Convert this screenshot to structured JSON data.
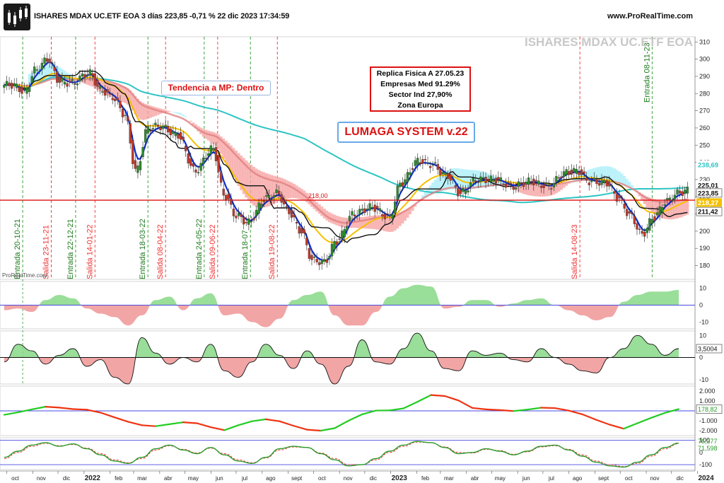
{
  "header": {
    "title": "ISHARES MDAX UC.ETF EOA 3 días 223,85 -0,71 % 22 dic 2023 17:34:59",
    "url": "www.ProRealTime.com",
    "watermark": "ISHARES MDAX UC.ETF EOA",
    "source": "ProRealTime.com"
  },
  "annotations": {
    "replica": [
      "Replica Fisica A 27.05.23",
      "Empresas Med 91.29%",
      "Sector Ind 27,90%",
      "Zona Europa"
    ],
    "system": "LUMAGA SYSTEM v.22",
    "trend": "Tendencia a MP: Dentro",
    "level_label": "218,00"
  },
  "colors": {
    "up": "#2e8b2e",
    "down": "#c0392b",
    "signal_green": "#2a9a2a",
    "signal_red": "#e33",
    "blue_line": "#1030d0",
    "yellow_ma": "#f5c000",
    "pink_ma": "#e08080",
    "cyan_ma": "#2ec4c4",
    "black_line": "#111111",
    "cloud_red": "#f7a0a0",
    "cloud_cyan": "#a8eef8",
    "hline_red": "#d11"
  },
  "chart_data": [
    {
      "type": "candlestick",
      "title": "ISHARES MDAX UC.ETF EOA 3 días",
      "x": [
        "oct",
        "nov",
        "dic",
        "2022",
        "feb",
        "mar",
        "abr",
        "may",
        "jun",
        "jul",
        "ago",
        "sept",
        "oct",
        "nov",
        "dic",
        "2023",
        "feb",
        "mar",
        "abr",
        "may",
        "jun",
        "jul",
        "ago",
        "sept",
        "oct",
        "nov",
        "dic",
        "2024"
      ],
      "ylim": [
        172,
        313
      ],
      "yticks": [
        180,
        190,
        200,
        210,
        220,
        230,
        240,
        250,
        260,
        270,
        280,
        290,
        300,
        310
      ],
      "price_series": [
        [
          "2021-10-08",
          285
        ],
        [
          "2021-10-22",
          281
        ],
        [
          "2021-11-05",
          294
        ],
        [
          "2021-11-19",
          300
        ],
        [
          "2021-12-03",
          287
        ],
        [
          "2021-12-17",
          286
        ],
        [
          "2022-01-07",
          292
        ],
        [
          "2022-01-21",
          282
        ],
        [
          "2022-02-04",
          278
        ],
        [
          "2022-02-18",
          268
        ],
        [
          "2022-03-04",
          235
        ],
        [
          "2022-03-18",
          260
        ],
        [
          "2022-04-01",
          261
        ],
        [
          "2022-04-22",
          256
        ],
        [
          "2022-05-13",
          235
        ],
        [
          "2022-06-03",
          248
        ],
        [
          "2022-06-17",
          221
        ],
        [
          "2022-07-01",
          209
        ],
        [
          "2022-07-15",
          205
        ],
        [
          "2022-08-05",
          219
        ],
        [
          "2022-08-19",
          222
        ],
        [
          "2022-09-02",
          211
        ],
        [
          "2022-09-16",
          200
        ],
        [
          "2022-09-30",
          183
        ],
        [
          "2022-10-14",
          182
        ],
        [
          "2022-10-28",
          194
        ],
        [
          "2022-11-18",
          210
        ],
        [
          "2022-12-09",
          214
        ],
        [
          "2022-12-30",
          208
        ],
        [
          "2023-01-13",
          228
        ],
        [
          "2023-02-03",
          241
        ],
        [
          "2023-02-17",
          239
        ],
        [
          "2023-03-10",
          232
        ],
        [
          "2023-03-24",
          222
        ],
        [
          "2023-04-14",
          230
        ],
        [
          "2023-05-05",
          230
        ],
        [
          "2023-05-26",
          226
        ],
        [
          "2023-06-16",
          229
        ],
        [
          "2023-07-07",
          226
        ],
        [
          "2023-07-28",
          234
        ],
        [
          "2023-08-11",
          235
        ],
        [
          "2023-08-25",
          229
        ],
        [
          "2023-09-15",
          228
        ],
        [
          "2023-09-29",
          219
        ],
        [
          "2023-10-13",
          209
        ],
        [
          "2023-10-27",
          198
        ],
        [
          "2023-11-10",
          208
        ],
        [
          "2023-11-24",
          217
        ],
        [
          "2023-12-08",
          222
        ],
        [
          "2023-12-22",
          223.85
        ]
      ],
      "price_labels": {
        "last": "223,85",
        "blue": "225,01",
        "black": "211,42",
        "yellow": "218,27",
        "cyan": "238,69"
      },
      "horizontal_line": 218,
      "signals": [
        {
          "label": "Entrada 20-10-21",
          "type": "entrada",
          "date": "2021-10-20"
        },
        {
          "label": "Salida 23-11-21",
          "type": "salida",
          "date": "2021-11-23"
        },
        {
          "label": "Entrada 22-12-21",
          "type": "entrada",
          "date": "2021-12-22"
        },
        {
          "label": "Salida 14-01-22",
          "type": "salida",
          "date": "2022-01-14"
        },
        {
          "label": "Entrada 18-03-22",
          "type": "entrada",
          "date": "2022-03-18"
        },
        {
          "label": "Salida 08-04-22",
          "type": "salida",
          "date": "2022-04-08"
        },
        {
          "label": "Entrada 24-05-22",
          "type": "entrada",
          "date": "2022-05-24"
        },
        {
          "label": "Salida 09-06-22",
          "type": "salida",
          "date": "2022-06-09"
        },
        {
          "label": "Entrada 18-07",
          "type": "entrada",
          "date": "2022-07-18"
        },
        {
          "label": "Salida 19-08-22",
          "type": "salida",
          "date": "2022-08-19"
        },
        {
          "label": "Salida 14-08-23",
          "type": "salida",
          "date": "2023-08-14"
        },
        {
          "label": "Entrada 08-11-23",
          "type": "entrada",
          "date": "2023-11-08"
        }
      ]
    },
    {
      "type": "area",
      "panel": "oscillator 1",
      "yticks": [
        10,
        0,
        -10
      ],
      "ylim": [
        -14,
        14
      ],
      "series": [
        {
          "values": [
            -3,
            -2,
            -4,
            3,
            6,
            4,
            -2,
            -5,
            -7,
            -12,
            -6,
            3,
            5,
            -3,
            4,
            7,
            -6,
            -5,
            -10,
            -13,
            -8,
            3,
            6,
            8,
            -6,
            -12,
            -12,
            -4,
            5,
            10,
            12,
            11,
            -2,
            -1,
            3,
            3,
            -1,
            1,
            3,
            4,
            0,
            -3,
            -6,
            -9,
            -7,
            2,
            6,
            8,
            8,
            9
          ]
        }
      ]
    },
    {
      "type": "area",
      "panel": "oscillator 2",
      "yticks": [
        10,
        0,
        -10
      ],
      "ylim": [
        -12,
        12
      ],
      "last_label": "3,5004",
      "series": [
        {
          "values": [
            -2,
            6,
            3,
            -3,
            1,
            4,
            -4,
            -1,
            -9,
            -12,
            9,
            2,
            -3,
            0,
            -2,
            6,
            -6,
            -9,
            -2,
            6,
            1,
            -5,
            3,
            -3,
            -12,
            -4,
            8,
            -2,
            -3,
            4,
            11,
            3,
            -5,
            -6,
            3,
            1,
            2,
            -1,
            -2,
            4,
            0,
            -3,
            -6,
            -7,
            0,
            4,
            10,
            6,
            1,
            4
          ]
        }
      ]
    },
    {
      "type": "line",
      "panel": "oscillator 3",
      "yticks": [
        2000,
        1000,
        0,
        -1000,
        -2000
      ],
      "ylim": [
        -2500,
        2500
      ],
      "last_label": "178,82",
      "series": [
        {
          "values": [
            -400,
            -150,
            150,
            420,
            330,
            180,
            120,
            -180,
            -650,
            -1100,
            -1450,
            -1550,
            -1350,
            -1150,
            -1250,
            -1650,
            -1950,
            -1450,
            -1050,
            -850,
            -1050,
            -1500,
            -1900,
            -2000,
            -1750,
            -1000,
            -350,
            30,
            50,
            250,
            900,
            1600,
            1500,
            1050,
            300,
            150,
            80,
            -20,
            130,
            320,
            280,
            30,
            -350,
            -900,
            -1400,
            -1800,
            -1250,
            -700,
            -200,
            178.82
          ]
        }
      ]
    },
    {
      "type": "line",
      "panel": "oscillator 4",
      "yticks": [
        100,
        0,
        -100
      ],
      "ylim": [
        -140,
        120
      ],
      "last_labels": [
        "76,377",
        "71,598"
      ],
      "series": [
        {
          "values": [
            -40,
            10,
            60,
            80,
            50,
            70,
            30,
            -20,
            -70,
            -90,
            -40,
            30,
            60,
            20,
            -10,
            40,
            -20,
            -70,
            -90,
            -40,
            30,
            50,
            40,
            -10,
            -60,
            -110,
            -100,
            -50,
            10,
            60,
            90,
            80,
            40,
            -10,
            0,
            30,
            10,
            -20,
            10,
            50,
            60,
            20,
            -30,
            -80,
            -110,
            -120,
            -80,
            -20,
            40,
            76.377
          ]
        },
        {
          "values": [
            -50,
            0,
            50,
            75,
            55,
            65,
            35,
            -10,
            -60,
            -85,
            -50,
            20,
            55,
            25,
            -5,
            35,
            -10,
            -60,
            -85,
            -45,
            20,
            45,
            40,
            -5,
            -50,
            -100,
            -100,
            -60,
            0,
            50,
            85,
            80,
            45,
            0,
            -5,
            25,
            15,
            -15,
            5,
            45,
            55,
            25,
            -20,
            -70,
            -100,
            -115,
            -90,
            -30,
            30,
            71.598
          ]
        }
      ]
    }
  ]
}
